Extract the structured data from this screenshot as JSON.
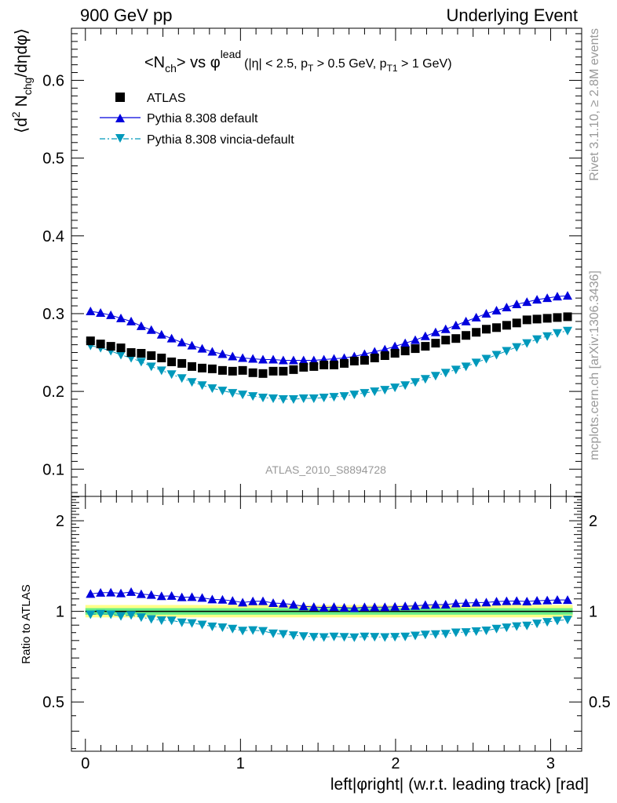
{
  "header": {
    "left": "900 GeV pp",
    "right": "Underlying Event"
  },
  "side_labels": {
    "rivet": "Rivet 3.1.10, ≥ 2.8M events",
    "mcplots": "mcplots.cern.ch [arXiv:1306.3436]"
  },
  "colors": {
    "atlas": "#000000",
    "pythia_default": "#0000dd",
    "vincia": "#0099bb",
    "band_inner": "#66ee88",
    "band_outer": "#ffff88",
    "watermark": "#999999"
  },
  "chart_data": [
    {
      "type": "scatter",
      "title_parts": {
        "a": "<N",
        "a_sub": "ch",
        "b": "> vs φ",
        "b_sup": "lead",
        "c": "(|η| < 2.5, p",
        "c_sub": "T",
        "d": " > 0.5 GeV, p",
        "d_sub": "T1",
        "e": " > 1 GeV)"
      },
      "ylabel_parts": {
        "a": "⟨d",
        "a_sup": "2",
        "b": " N",
        "b_sub": "chg",
        "c": "/dηdφ⟩"
      },
      "watermark": "ATLAS_2010_S8894728",
      "xlim": [
        -0.09,
        3.2
      ],
      "ylim": [
        0.065,
        0.667
      ],
      "y_ticks": [
        0.1,
        0.2,
        0.3,
        0.4,
        0.5,
        0.6
      ],
      "y_tick_labels": [
        "0.1",
        "0.2",
        "0.3",
        "0.4",
        "0.5",
        "0.6"
      ],
      "legend_position": "top-left",
      "x": [
        0.033,
        0.098,
        0.164,
        0.229,
        0.295,
        0.36,
        0.425,
        0.491,
        0.556,
        0.622,
        0.687,
        0.753,
        0.818,
        0.884,
        0.949,
        1.014,
        1.08,
        1.145,
        1.211,
        1.276,
        1.342,
        1.407,
        1.473,
        1.538,
        1.603,
        1.669,
        1.734,
        1.8,
        1.865,
        1.931,
        1.996,
        2.062,
        2.127,
        2.192,
        2.258,
        2.323,
        2.389,
        2.454,
        2.52,
        2.585,
        2.651,
        2.716,
        2.781,
        2.847,
        2.912,
        2.978,
        3.043,
        3.109
      ],
      "series": [
        {
          "name": "ATLAS",
          "marker": "square",
          "values": [
            0.265,
            0.261,
            0.258,
            0.256,
            0.25,
            0.249,
            0.246,
            0.243,
            0.238,
            0.236,
            0.232,
            0.23,
            0.229,
            0.227,
            0.226,
            0.227,
            0.224,
            0.223,
            0.226,
            0.226,
            0.228,
            0.231,
            0.232,
            0.234,
            0.234,
            0.236,
            0.239,
            0.24,
            0.243,
            0.246,
            0.249,
            0.252,
            0.255,
            0.258,
            0.262,
            0.266,
            0.268,
            0.272,
            0.276,
            0.28,
            0.282,
            0.285,
            0.288,
            0.292,
            0.293,
            0.294,
            0.295,
            0.296
          ]
        },
        {
          "name": "Pythia 8.308 default",
          "marker": "triangle-up",
          "line": "solid",
          "values": [
            0.303,
            0.301,
            0.298,
            0.294,
            0.29,
            0.284,
            0.279,
            0.273,
            0.268,
            0.263,
            0.259,
            0.255,
            0.251,
            0.248,
            0.245,
            0.243,
            0.242,
            0.241,
            0.241,
            0.24,
            0.24,
            0.24,
            0.24,
            0.241,
            0.242,
            0.243,
            0.245,
            0.248,
            0.251,
            0.254,
            0.258,
            0.262,
            0.266,
            0.271,
            0.276,
            0.28,
            0.285,
            0.29,
            0.295,
            0.3,
            0.304,
            0.308,
            0.312,
            0.315,
            0.318,
            0.32,
            0.322,
            0.323
          ]
        },
        {
          "name": "Pythia 8.308 vincia-default",
          "marker": "triangle-down",
          "line": "dash-dot",
          "values": [
            0.259,
            0.256,
            0.252,
            0.247,
            0.243,
            0.238,
            0.232,
            0.227,
            0.222,
            0.217,
            0.212,
            0.208,
            0.204,
            0.201,
            0.198,
            0.196,
            0.194,
            0.192,
            0.191,
            0.19,
            0.19,
            0.191,
            0.191,
            0.192,
            0.193,
            0.194,
            0.196,
            0.198,
            0.2,
            0.202,
            0.205,
            0.208,
            0.212,
            0.216,
            0.22,
            0.224,
            0.228,
            0.232,
            0.237,
            0.242,
            0.247,
            0.252,
            0.257,
            0.262,
            0.267,
            0.271,
            0.275,
            0.278
          ]
        }
      ]
    },
    {
      "type": "scatter",
      "ylabel": "Ratio to ATLAS",
      "xlabel": "left|φright| (w.r.t. leading track) [rad]",
      "xlim": [
        -0.09,
        3.2
      ],
      "ylim": [
        0.343,
        2.41
      ],
      "y_log": true,
      "x_ticks": [
        0,
        1,
        2,
        3
      ],
      "x_tick_labels": [
        "0",
        "1",
        "2",
        "3"
      ],
      "y_ticks": [
        0.5,
        1,
        2
      ],
      "y_tick_labels": [
        "0.5",
        "1",
        "2"
      ],
      "reference_line": 1,
      "uncertainty_band": {
        "inner": [
          0.975,
          1.025
        ],
        "outer": [
          0.955,
          1.05
        ]
      },
      "series": [
        {
          "name": "Pythia 8.308 default",
          "values": [
            1.143,
            1.153,
            1.155,
            1.148,
            1.16,
            1.141,
            1.134,
            1.123,
            1.126,
            1.114,
            1.116,
            1.109,
            1.096,
            1.093,
            1.084,
            1.07,
            1.08,
            1.081,
            1.066,
            1.062,
            1.053,
            1.039,
            1.034,
            1.03,
            1.034,
            1.029,
            1.025,
            1.033,
            1.033,
            1.033,
            1.036,
            1.04,
            1.043,
            1.05,
            1.053,
            1.053,
            1.063,
            1.066,
            1.069,
            1.071,
            1.078,
            1.081,
            1.083,
            1.079,
            1.085,
            1.088,
            1.092,
            1.091
          ]
        },
        {
          "name": "Pythia 8.308 vincia-default",
          "values": [
            0.977,
            0.981,
            0.977,
            0.965,
            0.972,
            0.956,
            0.943,
            0.934,
            0.933,
            0.919,
            0.914,
            0.904,
            0.891,
            0.885,
            0.876,
            0.863,
            0.866,
            0.861,
            0.845,
            0.841,
            0.833,
            0.827,
            0.823,
            0.821,
            0.825,
            0.822,
            0.82,
            0.825,
            0.823,
            0.821,
            0.823,
            0.825,
            0.831,
            0.837,
            0.84,
            0.842,
            0.851,
            0.853,
            0.859,
            0.864,
            0.876,
            0.884,
            0.892,
            0.897,
            0.911,
            0.922,
            0.932,
            0.939
          ]
        }
      ]
    }
  ]
}
